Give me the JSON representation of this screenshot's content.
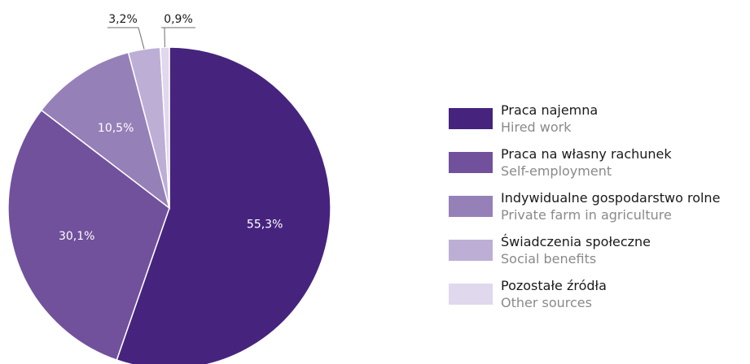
{
  "chart_data": {
    "type": "pie",
    "title": "",
    "slices": [
      {
        "label": "Praca najemna",
        "label_en": "Hired work",
        "value": 55.3,
        "display": "55,3%",
        "color": "#46247e"
      },
      {
        "label": "Praca na własny rachunek",
        "label_en": "Self-employment",
        "value": 30.1,
        "display": "30,1%",
        "color": "#71519c"
      },
      {
        "label": "Indywidualne gospodarstwo rolne",
        "label_en": "Private farm in agriculture",
        "value": 10.5,
        "display": "10,5%",
        "color": "#9680b8"
      },
      {
        "label": "Świadczenia społeczne",
        "label_en": "Social benefits",
        "value": 3.2,
        "display": "3,2%",
        "color": "#bdaed6"
      },
      {
        "label": "Pozostałe źródła",
        "label_en": "Other sources",
        "value": 0.9,
        "display": "0,9%",
        "color": "#e0d8ec"
      }
    ],
    "legend_position": "right"
  }
}
